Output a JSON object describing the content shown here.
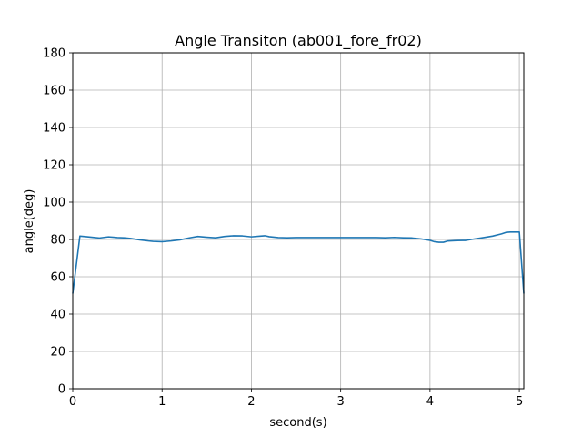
{
  "chart_data": {
    "type": "line",
    "title": "Angle Transiton (ab001_fore_fr02)",
    "xlabel": "second(s)",
    "ylabel": "angle(deg)",
    "xlim": [
      0,
      5.05
    ],
    "ylim": [
      0,
      180
    ],
    "xticks": [
      "0",
      "1",
      "2",
      "3",
      "4",
      "5"
    ],
    "yticks": [
      "0",
      "20",
      "40",
      "60",
      "80",
      "100",
      "120",
      "140",
      "160",
      "180"
    ],
    "grid": true,
    "line_color": "#1f77b4",
    "series": [
      {
        "x": [
          0,
          0.08,
          0.15,
          0.25,
          0.3,
          0.4,
          0.5,
          0.6,
          0.65,
          0.75,
          0.85,
          0.9,
          1.0,
          1.1,
          1.2,
          1.3,
          1.4,
          1.5,
          1.6,
          1.7,
          1.8,
          1.9,
          2.0,
          2.1,
          2.15,
          2.2,
          2.3,
          2.4,
          2.5,
          2.6,
          2.7,
          2.8,
          2.9,
          3.0,
          3.1,
          3.2,
          3.3,
          3.4,
          3.5,
          3.6,
          3.7,
          3.8,
          3.9,
          4.0,
          4.05,
          4.1,
          4.15,
          4.2,
          4.3,
          4.4,
          4.5,
          4.6,
          4.7,
          4.8,
          4.85,
          4.9,
          4.95,
          5.0,
          5.05
        ],
        "y": [
          51,
          81.8,
          81.5,
          81.0,
          80.8,
          81.4,
          81.0,
          80.8,
          80.5,
          79.8,
          79.2,
          79.0,
          78.8,
          79.2,
          79.8,
          80.8,
          81.6,
          81.2,
          80.9,
          81.6,
          82.0,
          81.9,
          81.4,
          81.8,
          82.0,
          81.5,
          81.0,
          80.9,
          81.0,
          81.0,
          81.0,
          81.0,
          81.0,
          81.0,
          81.0,
          81.0,
          81.0,
          81.0,
          80.9,
          81.1,
          80.9,
          80.8,
          80.3,
          79.5,
          78.8,
          78.5,
          78.5,
          79.2,
          79.4,
          79.5,
          80.3,
          81.0,
          81.8,
          83.0,
          83.8,
          84.0,
          84.0,
          84.0,
          51
        ]
      }
    ]
  }
}
